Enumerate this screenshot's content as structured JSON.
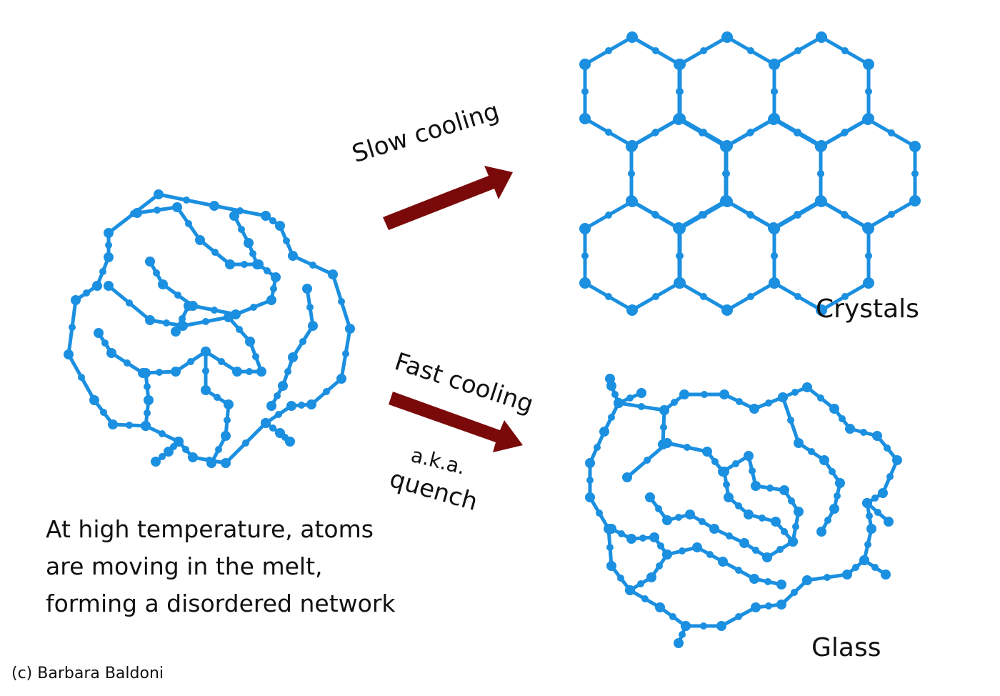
{
  "labels": {
    "slow_cooling": "Slow cooling",
    "fast_cooling": "Fast cooling",
    "aka_line1": "a.k.a.",
    "aka_line2": "quench",
    "crystals": "Crystals",
    "glass": "Glass",
    "caption_lines": [
      "At high temperature, atoms",
      "are moving in the melt,",
      "forming a disordered network"
    ],
    "credit": "(c) Barbara Baldoni"
  },
  "colors": {
    "atom": "#1b8fe0",
    "arrow": "#7a0a0a",
    "text": "#111111"
  }
}
